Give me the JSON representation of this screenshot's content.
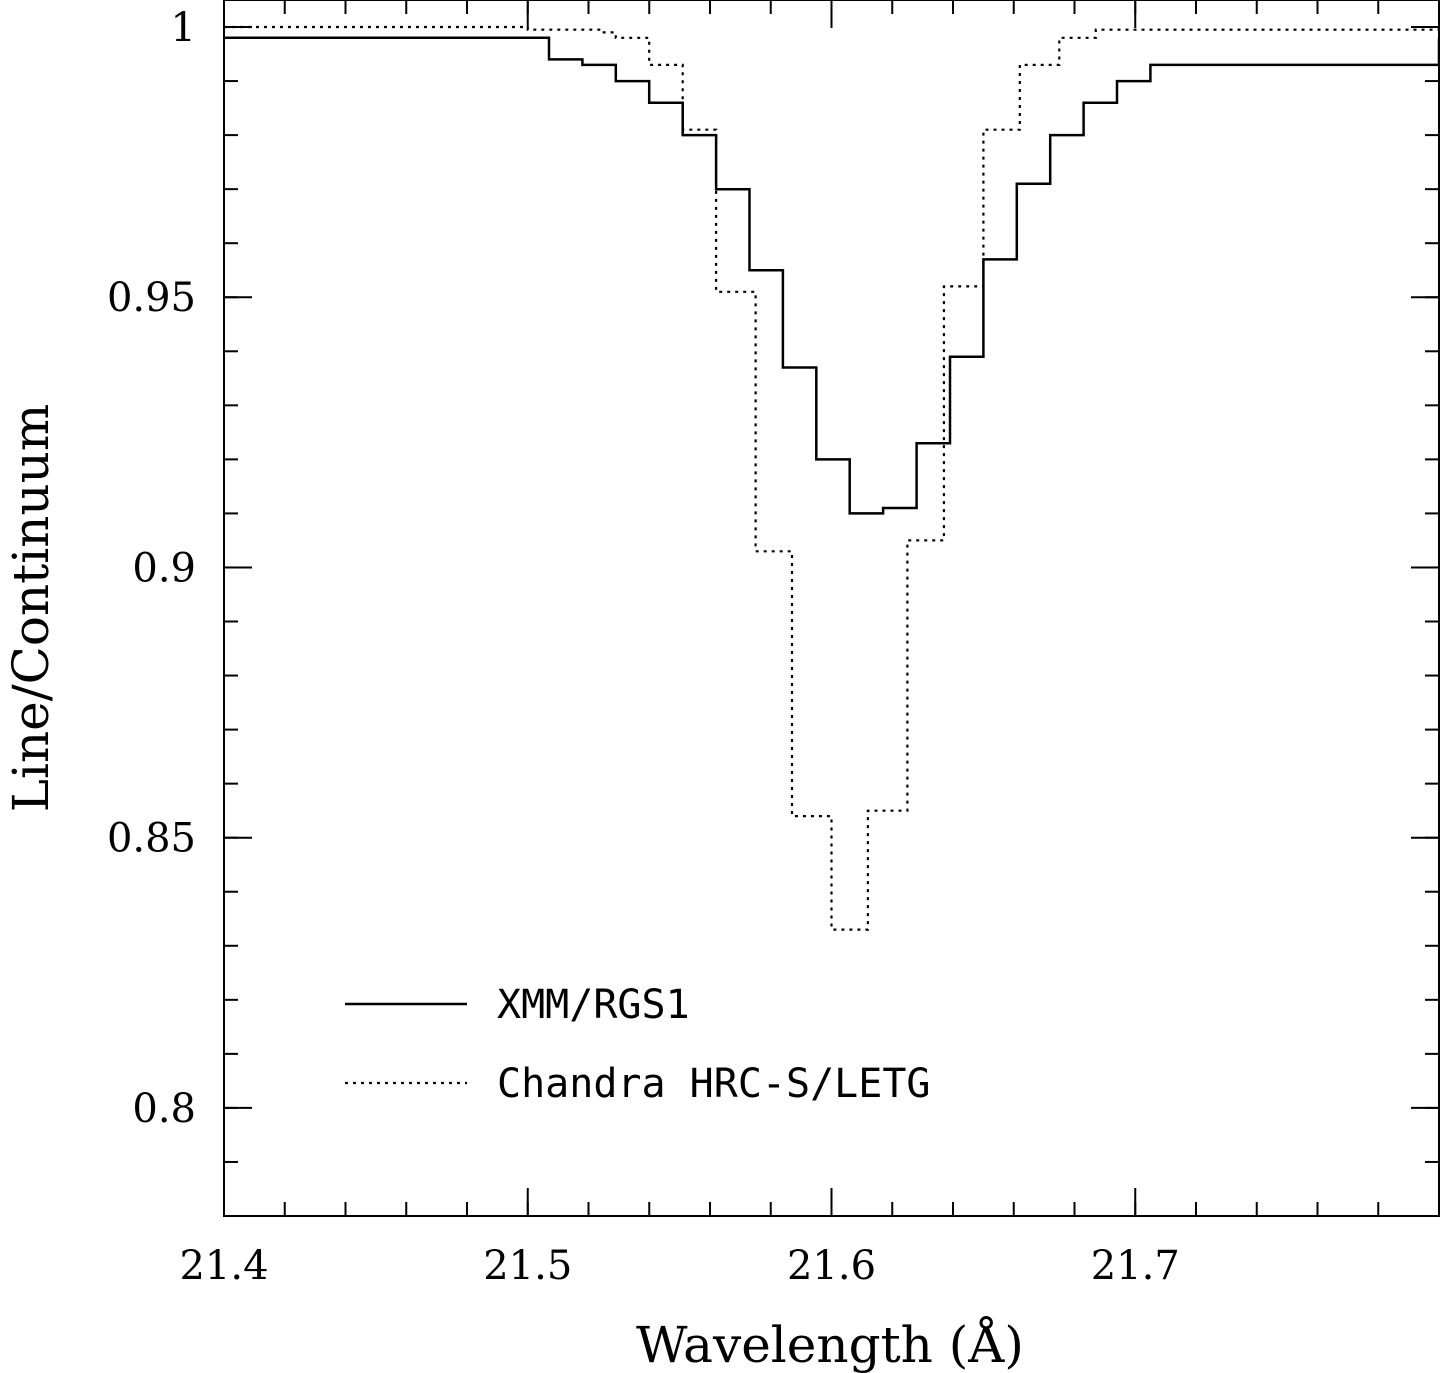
{
  "chart_data": {
    "type": "line",
    "step": true,
    "xlabel": "Wavelength (Å)",
    "ylabel": "Line/Continuum",
    "xlim": [
      21.4,
      21.8
    ],
    "ylim": [
      0.78,
      1.005
    ],
    "x_major_ticks": [
      21.4,
      21.5,
      21.6,
      21.7
    ],
    "x_tick_labels": [
      "21.4",
      "21.5",
      "21.6",
      "21.7"
    ],
    "x_minor_step": 0.02,
    "y_major_ticks": [
      0.8,
      0.85,
      0.9,
      0.95,
      1.0
    ],
    "y_tick_labels": [
      "0.8",
      "0.85",
      "0.9",
      "0.95",
      "1"
    ],
    "y_minor_step": 0.01,
    "legend_position": "lower-left",
    "series": [
      {
        "name": "XMM/RGS1",
        "style": "solid",
        "x": [
          21.4,
          21.507,
          21.518,
          21.529,
          21.54,
          21.551,
          21.562,
          21.573,
          21.584,
          21.595,
          21.606,
          21.617,
          21.628,
          21.639,
          21.65,
          21.661,
          21.672,
          21.683,
          21.694,
          21.705,
          21.8
        ],
        "y": [
          0.998,
          0.994,
          0.993,
          0.99,
          0.986,
          0.98,
          0.97,
          0.955,
          0.937,
          0.92,
          0.91,
          0.911,
          0.923,
          0.939,
          0.957,
          0.971,
          0.98,
          0.986,
          0.99,
          0.993,
          0.998
        ]
      },
      {
        "name": "Chandra HRC-S/LETG",
        "style": "dotted",
        "x": [
          21.4,
          21.5,
          21.525,
          21.529,
          21.54,
          21.551,
          21.562,
          21.575,
          21.587,
          21.6,
          21.612,
          21.625,
          21.637,
          21.65,
          21.662,
          21.675,
          21.687,
          21.8
        ],
        "y": [
          1.0,
          0.9995,
          0.999,
          0.998,
          0.993,
          0.981,
          0.951,
          0.903,
          0.854,
          0.833,
          0.855,
          0.905,
          0.952,
          0.981,
          0.993,
          0.998,
          0.9995,
          1.0
        ]
      }
    ]
  }
}
